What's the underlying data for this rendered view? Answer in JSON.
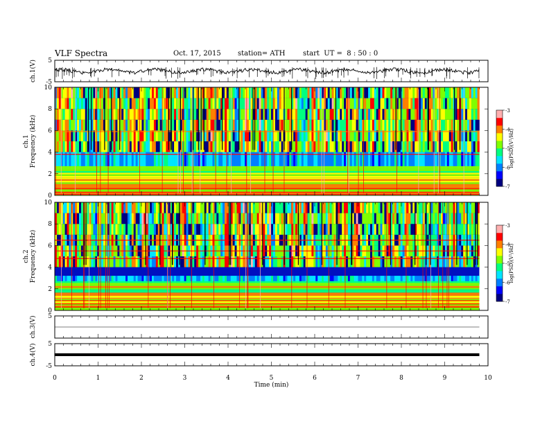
{
  "header": {
    "title": "VLF Spectra",
    "date": "Oct. 17, 2015",
    "station": "station= ATH",
    "start": "start  UT =  8 : 50 : 0"
  },
  "chart_data": [
    {
      "type": "line",
      "panel": "ch1-waveform",
      "ylabel": "ch.1(V)",
      "ylim": [
        -5,
        5
      ],
      "y_ticks": [
        "5",
        "-5"
      ],
      "xlim": [
        0,
        10
      ],
      "baseline_value": 0
    },
    {
      "type": "heatmap",
      "panel": "ch1-spectrogram",
      "ylabel": "ch.1\nFrequency (kHz)",
      "ylim": [
        0,
        10
      ],
      "y_ticks": [
        "0",
        "2",
        "4",
        "6",
        "8",
        "10"
      ],
      "x_range_min": [
        0,
        9.8
      ],
      "colorbar": {
        "label": "log(PSD)(V²/Hz)",
        "range": [
          -7,
          -3
        ],
        "ticks": [
          "-3",
          "-4",
          "-5",
          "-6",
          "-7"
        ]
      }
    },
    {
      "type": "heatmap",
      "panel": "ch2-spectrogram",
      "ylabel": "ch.2\nFrequency (kHz)",
      "ylim": [
        0,
        10
      ],
      "y_ticks": [
        "0",
        "2",
        "4",
        "6",
        "8",
        "10"
      ],
      "x_range_min": [
        0,
        9.8
      ],
      "colorbar": {
        "label": "log(PSD)(V²/Hz)",
        "range": [
          -7,
          -3
        ],
        "ticks": [
          "-3",
          "-4",
          "-5",
          "-6",
          "-7"
        ]
      }
    },
    {
      "type": "line",
      "panel": "ch3-waveform",
      "ylabel": "ch.3(V)",
      "ylim": [
        -5,
        5
      ],
      "y_ticks": [
        "5"
      ],
      "baseline_value": 0
    },
    {
      "type": "line",
      "panel": "ch4-waveform",
      "ylabel": "ch.4(V)",
      "ylim": [
        -5,
        5
      ],
      "y_ticks": [
        "5",
        "-5"
      ],
      "baseline_value": 0
    }
  ],
  "x_axis": {
    "label": "Time  (min)",
    "ticks": [
      "0",
      "1",
      "2",
      "3",
      "4",
      "5",
      "6",
      "7",
      "8",
      "9",
      "10"
    ],
    "range": [
      0,
      10
    ]
  },
  "colors": {
    "colormap": [
      "#000080",
      "#0000ff",
      "#0080ff",
      "#00e5ff",
      "#00ff80",
      "#80ff00",
      "#ffff00",
      "#ff8000",
      "#ff0000",
      "#ffb0b0"
    ],
    "trace": "#000000"
  }
}
